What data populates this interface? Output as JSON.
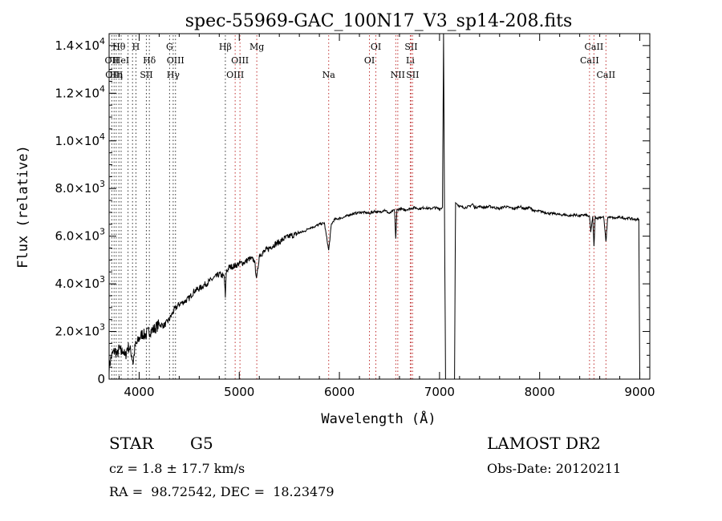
{
  "chart_data": {
    "type": "line",
    "title": "spec-55969-GAC_100N17_V3_sp14-208.fits",
    "xlabel": "Wavelength (Å)",
    "ylabel": "Flux (relative)",
    "xlim": [
      3700,
      9100
    ],
    "ylim": [
      0,
      14500
    ],
    "x_ticks": [
      4000,
      5000,
      6000,
      7000,
      8000,
      9000
    ],
    "y_ticks": [
      {
        "value": 0,
        "mant": "0",
        "exp": ""
      },
      {
        "value": 2000,
        "mant": "2.0×10",
        "exp": "3"
      },
      {
        "value": 4000,
        "mant": "4.0×10",
        "exp": "3"
      },
      {
        "value": 6000,
        "mant": "6.0×10",
        "exp": "3"
      },
      {
        "value": 8000,
        "mant": "8.0×10",
        "exp": "3"
      },
      {
        "value": 10000,
        "mant": "1.0×10",
        "exp": "4"
      },
      {
        "value": 12000,
        "mant": "1.2×10",
        "exp": "4"
      },
      {
        "value": 14000,
        "mant": "1.4×10",
        "exp": "4"
      }
    ],
    "series": [
      {
        "x": [
          3700,
          3720,
          3740,
          3760,
          3780,
          3800,
          3820,
          3840,
          3860,
          3880,
          3900,
          3920,
          3940,
          3960,
          3980,
          4000,
          4030,
          4060,
          4100,
          4150,
          4200,
          4250,
          4300,
          4350,
          4400,
          4450,
          4500,
          4550,
          4600,
          4650,
          4700,
          4750,
          4800,
          4850,
          4861,
          4870,
          4900,
          4950,
          5000,
          5050,
          5100,
          5150,
          5175,
          5200,
          5250,
          5300,
          5350,
          5400,
          5450,
          5500,
          5550,
          5600,
          5650,
          5700,
          5750,
          5800,
          5850,
          5893,
          5920,
          5950,
          6000,
          6050,
          6100,
          6150,
          6200,
          6250,
          6300,
          6350,
          6400,
          6450,
          6500,
          6550,
          6563,
          6575,
          6600,
          6650,
          6700,
          6750,
          6800,
          6850,
          6900,
          6950,
          7000,
          7030,
          7040,
          7050,
          7060,
          7080,
          7100,
          7130,
          7150,
          7160,
          7200,
          7250,
          7300,
          7330,
          7350,
          7400,
          7450,
          7500,
          7550,
          7600,
          7650,
          7700,
          7750,
          7800,
          7850,
          7900,
          7950,
          8000,
          8050,
          8100,
          8150,
          8200,
          8250,
          8300,
          8350,
          8400,
          8450,
          8480,
          8498,
          8510,
          8530,
          8542,
          8555,
          8580,
          8600,
          8640,
          8662,
          8680,
          8700,
          8750,
          8800,
          8850,
          8900,
          8950,
          8990,
          9000
        ],
        "y": [
          500,
          900,
          1100,
          1200,
          1000,
          1300,
          1100,
          1250,
          900,
          1300,
          1350,
          1100,
          700,
          1400,
          1500,
          1700,
          1900,
          1850,
          2000,
          2100,
          2300,
          2250,
          2500,
          2900,
          3150,
          3250,
          3400,
          3700,
          3800,
          3950,
          4100,
          4250,
          4400,
          4300,
          3400,
          4500,
          4700,
          4750,
          4850,
          4900,
          5050,
          5000,
          4200,
          5200,
          5350,
          5500,
          5650,
          5750,
          5900,
          6000,
          6050,
          6150,
          6200,
          6350,
          6400,
          6500,
          6550,
          5400,
          6500,
          6700,
          6750,
          6800,
          6900,
          6950,
          7000,
          7000,
          6950,
          7050,
          7000,
          7100,
          6950,
          7100,
          5900,
          7100,
          7150,
          7100,
          7150,
          7200,
          7150,
          7200,
          7150,
          7200,
          7150,
          7200,
          14500,
          7000,
          0,
          0,
          0,
          0,
          0,
          7400,
          7250,
          7200,
          7250,
          7350,
          7200,
          7250,
          7200,
          7250,
          7200,
          7150,
          7250,
          7200,
          7150,
          7250,
          7150,
          7200,
          7050,
          7050,
          7000,
          6950,
          6950,
          6900,
          6900,
          6850,
          6900,
          6850,
          6900,
          6850,
          6800,
          6200,
          6800,
          5550,
          6800,
          6750,
          6800,
          6800,
          5750,
          6800,
          6800,
          6750,
          6800,
          6750,
          6750,
          6700,
          6700,
          0
        ]
      }
    ],
    "line_markers": [
      {
        "wl": 3727,
        "label": "OII",
        "row": 2
      },
      {
        "wl": 3750,
        "label": "OIII",
        "row": 3
      },
      {
        "wl": 3771,
        "label": "Hη",
        "row": 3
      },
      {
        "wl": 3798,
        "label": "Hθ",
        "row": 1
      },
      {
        "wl": 3820,
        "label": "HeI",
        "row": 2
      },
      {
        "wl": 3889,
        "label": "",
        "row": 0
      },
      {
        "wl": 3934,
        "label": "",
        "row": 0
      },
      {
        "wl": 3968,
        "label": "H",
        "row": 1
      },
      {
        "wl": 4072,
        "label": "SII",
        "row": 3
      },
      {
        "wl": 4102,
        "label": "Hδ",
        "row": 2
      },
      {
        "wl": 4304,
        "label": "G",
        "row": 1
      },
      {
        "wl": 4340,
        "label": "Hγ",
        "row": 3
      },
      {
        "wl": 4363,
        "label": "OIII",
        "row": 2
      },
      {
        "wl": 4861,
        "label": "Hβ",
        "row": 1
      },
      {
        "wl": 4959,
        "label": "OIII",
        "row": 3
      },
      {
        "wl": 5007,
        "label": "OIII",
        "row": 2
      },
      {
        "wl": 5175,
        "label": "Mg",
        "row": 1
      },
      {
        "wl": 5893,
        "label": "Na",
        "row": 3
      },
      {
        "wl": 6300,
        "label": "OI",
        "row": 2
      },
      {
        "wl": 6364,
        "label": "OI",
        "row": 1
      },
      {
        "wl": 6563,
        "label": "",
        "row": 0
      },
      {
        "wl": 6583,
        "label": "NII",
        "row": 3
      },
      {
        "wl": 6708,
        "label": "Li",
        "row": 2
      },
      {
        "wl": 6716,
        "label": "SII",
        "row": 1
      },
      {
        "wl": 6731,
        "label": "SII",
        "row": 3
      },
      {
        "wl": 8498,
        "label": "CaII",
        "row": 2
      },
      {
        "wl": 8542,
        "label": "CaII",
        "row": 1
      },
      {
        "wl": 8662,
        "label": "CaII",
        "row": 3
      }
    ]
  },
  "info": {
    "object_class": "STAR",
    "subclass": "G5",
    "survey": "LAMOST DR2",
    "redshift": "cz = 1.8 ± 17.7 km/s",
    "obs_date": "Obs-Date: 20120211",
    "coords": "RA =  98.72542, DEC =  18.23479"
  }
}
